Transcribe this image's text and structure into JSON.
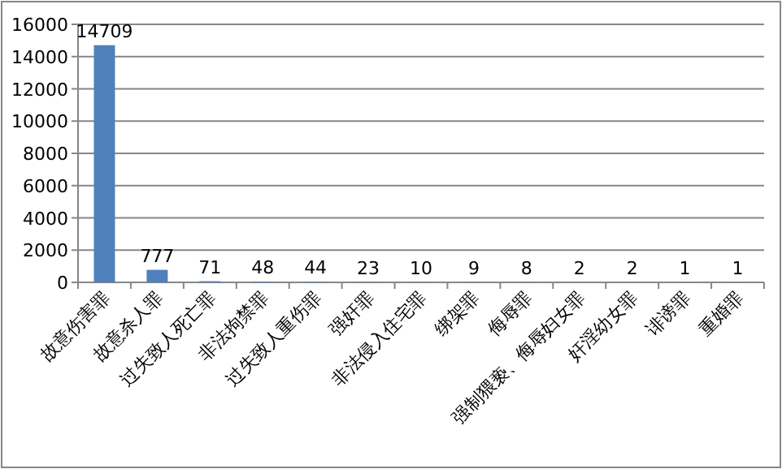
{
  "chart_data": {
    "type": "bar",
    "categories": [
      "故意伤害罪",
      "故意杀人罪",
      "过失致人死亡罪",
      "非法拘禁罪",
      "过失致人重伤罪",
      "强奸罪",
      "非法侵入住宅罪",
      "绑架罪",
      "侮辱罪",
      "强制猥亵、侮辱妇女罪",
      "奸淫幼女罪",
      "诽谤罪",
      "重婚罪"
    ],
    "values": [
      14709,
      777,
      71,
      48,
      44,
      23,
      10,
      9,
      8,
      2,
      2,
      1,
      1
    ],
    "color": "#4f81bd",
    "ylim": [
      0,
      16000
    ],
    "yticks": [
      0,
      2000,
      4000,
      6000,
      8000,
      10000,
      12000,
      14000,
      16000
    ],
    "grid": "y",
    "data_labels": true
  }
}
